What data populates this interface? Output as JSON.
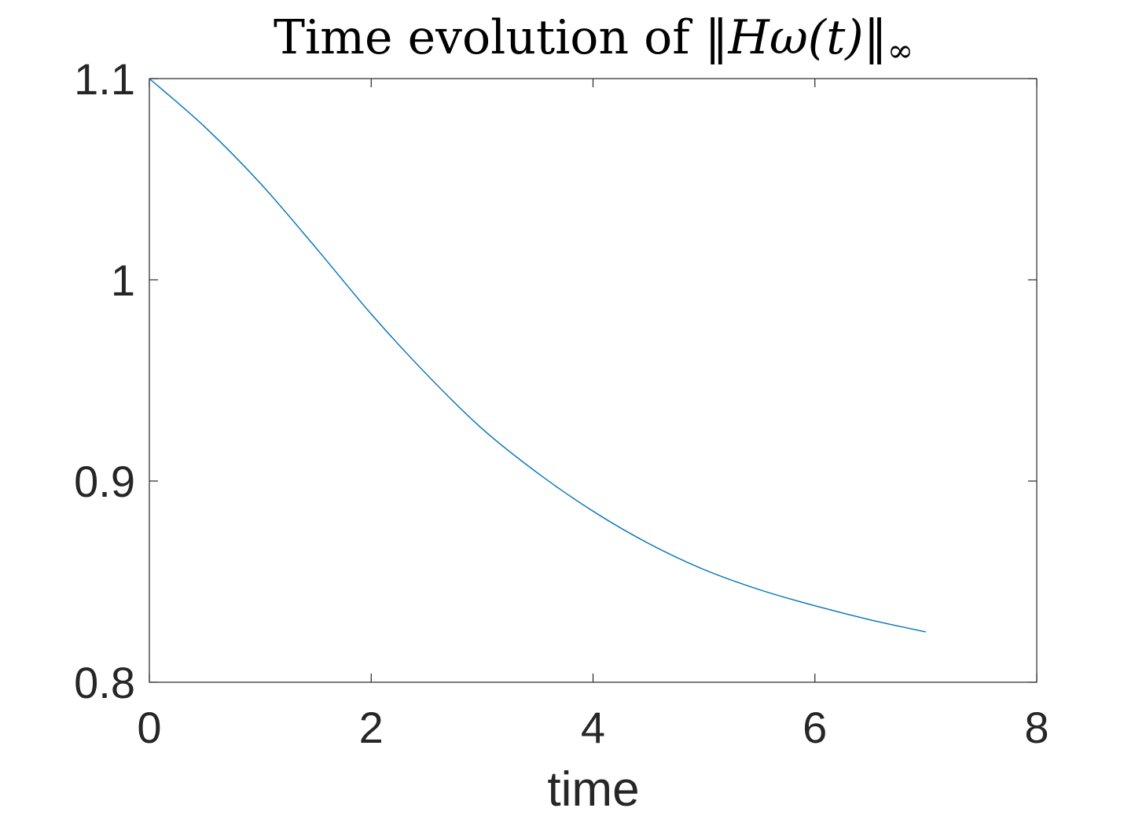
{
  "chart_data": {
    "type": "line",
    "title_prefix": "Time evolution of ",
    "title_math": "‖Hω(t)‖",
    "title_subscript": "∞",
    "xlabel": "time",
    "ylabel": "",
    "xlim": [
      0,
      8
    ],
    "ylim": [
      0.8,
      1.1
    ],
    "xticks": [
      0,
      2,
      4,
      6,
      8
    ],
    "yticks": [
      0.8,
      0.9,
      1.0,
      1.1
    ],
    "xtick_labels": [
      "0",
      "2",
      "4",
      "6",
      "8"
    ],
    "ytick_labels": [
      "0.8",
      "0.9",
      "1",
      "1.1"
    ],
    "grid": false,
    "box": true,
    "series": [
      {
        "color": "#0072BD",
        "x": [
          0,
          0.5,
          1.0,
          1.5,
          2.0,
          2.5,
          3.0,
          3.5,
          4.0,
          4.5,
          5.0,
          5.5,
          6.0,
          6.5,
          7.0
        ],
        "y": [
          1.1,
          1.076,
          1.048,
          1.016,
          0.983,
          0.953,
          0.926,
          0.904,
          0.885,
          0.869,
          0.856,
          0.846,
          0.838,
          0.831,
          0.825
        ]
      }
    ]
  }
}
